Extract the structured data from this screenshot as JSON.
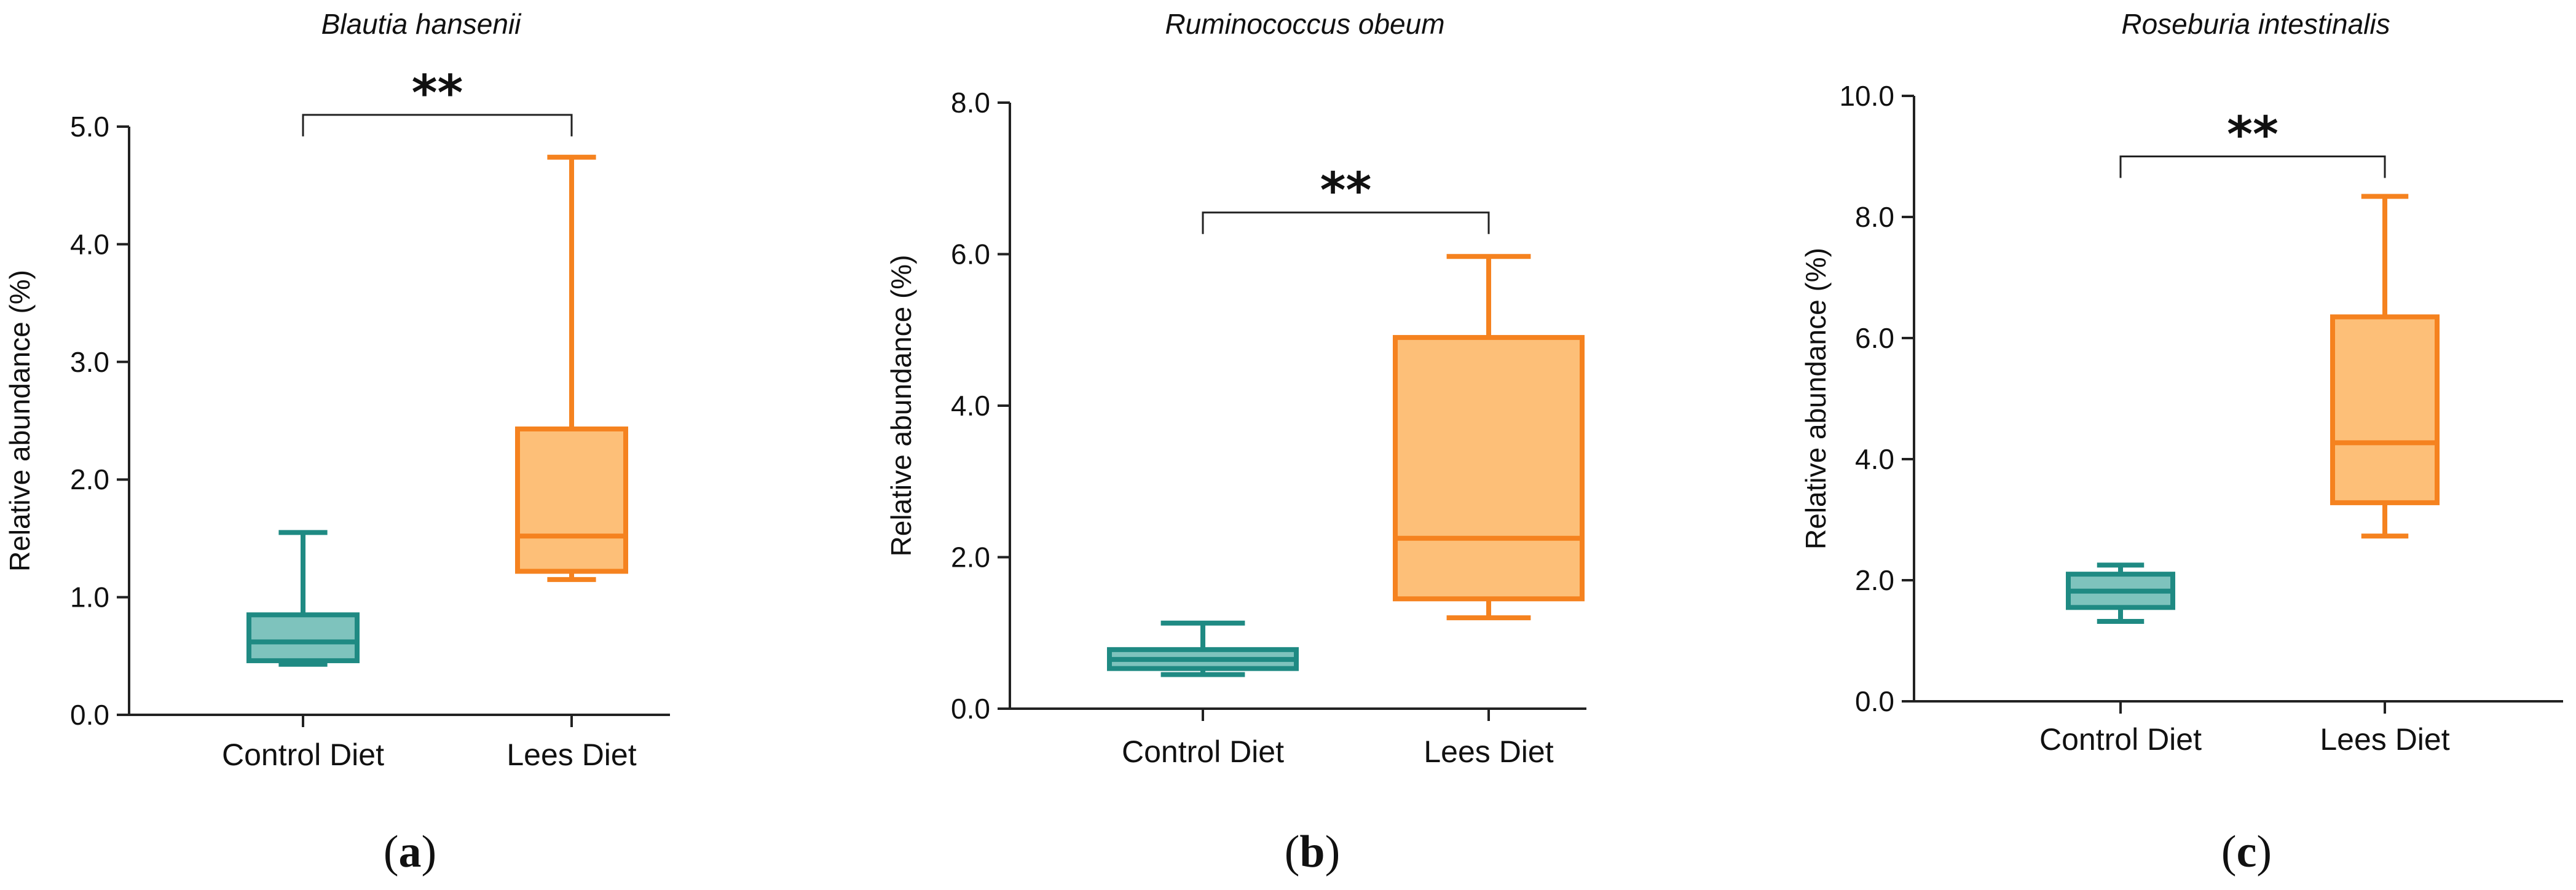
{
  "colors": {
    "control_stroke": "#1f8a83",
    "control_fill": "#7ec3bd",
    "lees_stroke": "#f5821f",
    "lees_fill": "#fdbf78",
    "axis": "#222222",
    "bracket": "#222222"
  },
  "chart_data": [
    {
      "type": "box",
      "panel_label": "a",
      "title": "Blautia hansenii",
      "ylabel": "Relative abundance (%)",
      "xlabel": "",
      "ylim": [
        0,
        5
      ],
      "yticks": [
        0,
        1,
        2,
        3,
        4,
        5
      ],
      "ytick_labels": [
        "0.0",
        "1.0",
        "2.0",
        "3.0",
        "4.0",
        "5.0"
      ],
      "categories": [
        "Control Diet",
        "Lees Diet"
      ],
      "boxes": [
        {
          "name": "Control Diet",
          "min": 0.43,
          "q1": 0.46,
          "median": 0.62,
          "q3": 0.85,
          "max": 1.55
        },
        {
          "name": "Lees Diet",
          "min": 1.15,
          "q1": 1.22,
          "median": 1.52,
          "q3": 2.43,
          "max": 4.74
        }
      ],
      "significance": {
        "label": "**",
        "y": 5.1
      }
    },
    {
      "type": "box",
      "panel_label": "b",
      "title": "Ruminococcus obeum",
      "ylabel": "Relative abundance (%)",
      "xlabel": "",
      "ylim": [
        0,
        8
      ],
      "yticks": [
        0,
        2,
        4,
        6,
        8
      ],
      "ytick_labels": [
        "0.0",
        "2.0",
        "4.0",
        "6.0",
        "8.0"
      ],
      "categories": [
        "Control Diet",
        "Lees Diet"
      ],
      "boxes": [
        {
          "name": "Control Diet",
          "min": 0.45,
          "q1": 0.53,
          "median": 0.65,
          "q3": 0.78,
          "max": 1.13
        },
        {
          "name": "Lees Diet",
          "min": 1.2,
          "q1": 1.45,
          "median": 2.25,
          "q3": 4.9,
          "max": 5.97
        }
      ],
      "significance": {
        "label": "**",
        "y": 6.55
      }
    },
    {
      "type": "box",
      "panel_label": "c",
      "title": "Roseburia intestinalis",
      "ylabel": "Relative abundance (%)",
      "xlabel": "",
      "ylim": [
        0,
        10
      ],
      "yticks": [
        0,
        2,
        4,
        6,
        8,
        10
      ],
      "ytick_labels": [
        "0.0",
        "2.0",
        "4.0",
        "6.0",
        "8.0",
        "10.0"
      ],
      "categories": [
        "Control Diet",
        "Lees Diet"
      ],
      "boxes": [
        {
          "name": "Control Diet",
          "min": 1.32,
          "q1": 1.55,
          "median": 1.82,
          "q3": 2.1,
          "max": 2.25
        },
        {
          "name": "Lees Diet",
          "min": 2.73,
          "q1": 3.28,
          "median": 4.27,
          "q3": 6.35,
          "max": 8.34
        }
      ],
      "significance": {
        "label": "**",
        "y": 9.0
      }
    }
  ]
}
